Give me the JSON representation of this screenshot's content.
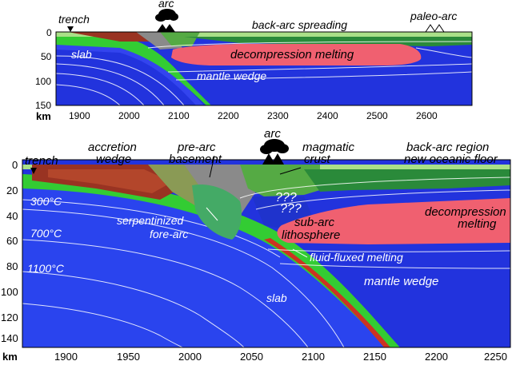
{
  "top_panel": {
    "labels": {
      "trench": "trench",
      "arc": "arc",
      "back_arc_spreading": "back-arc spreading",
      "paleo_arc": "paleo-arc",
      "slab": "slab",
      "decompression_melting": "decompression melting",
      "mantle_wedge": "mantle wedge"
    },
    "y_ticks": [
      "0",
      "50",
      "100",
      "150"
    ],
    "y_unit": "km",
    "x_ticks": [
      "1900",
      "2000",
      "2100",
      "2200",
      "2300",
      "2400",
      "2500",
      "2600"
    ]
  },
  "bottom_panel": {
    "labels": {
      "trench": "trench",
      "accretion_wedge_1": "accretion",
      "accretion_wedge_2": "wedge",
      "pre_arc_1": "pre-arc",
      "pre_arc_2": "basement",
      "arc": "arc",
      "magmatic_1": "magmatic",
      "magmatic_2": "crust",
      "back_arc_1": "back-arc region",
      "back_arc_2": "new oceanic floor",
      "t300": "300°C",
      "t700": "700°C",
      "t1100": "1100°C",
      "serpentinized": "serpentinized",
      "fore_arc": "fore-arc",
      "sub_arc_1": "sub-arc",
      "sub_arc_2": "lithosphere",
      "decompression_1": "decompression",
      "decompression_2": "melting",
      "fluid_fluxed": "fluid-fluxed melting",
      "mantle_wedge": "mantle wedge",
      "slab": "slab",
      "question_marks": "???"
    },
    "y_ticks": [
      "0",
      "20",
      "40",
      "60",
      "80",
      "100",
      "120",
      "140"
    ],
    "y_unit": "km",
    "x_ticks": [
      "1900",
      "1950",
      "2000",
      "2050",
      "2100",
      "2150",
      "2200",
      "2250"
    ]
  },
  "colors": {
    "mantle": "#2233dd",
    "slab_outer": "#33cc33",
    "melt": "#f06070",
    "crust": "#993322",
    "sediment": "#88cc55",
    "gray": "#8a8a8a"
  }
}
